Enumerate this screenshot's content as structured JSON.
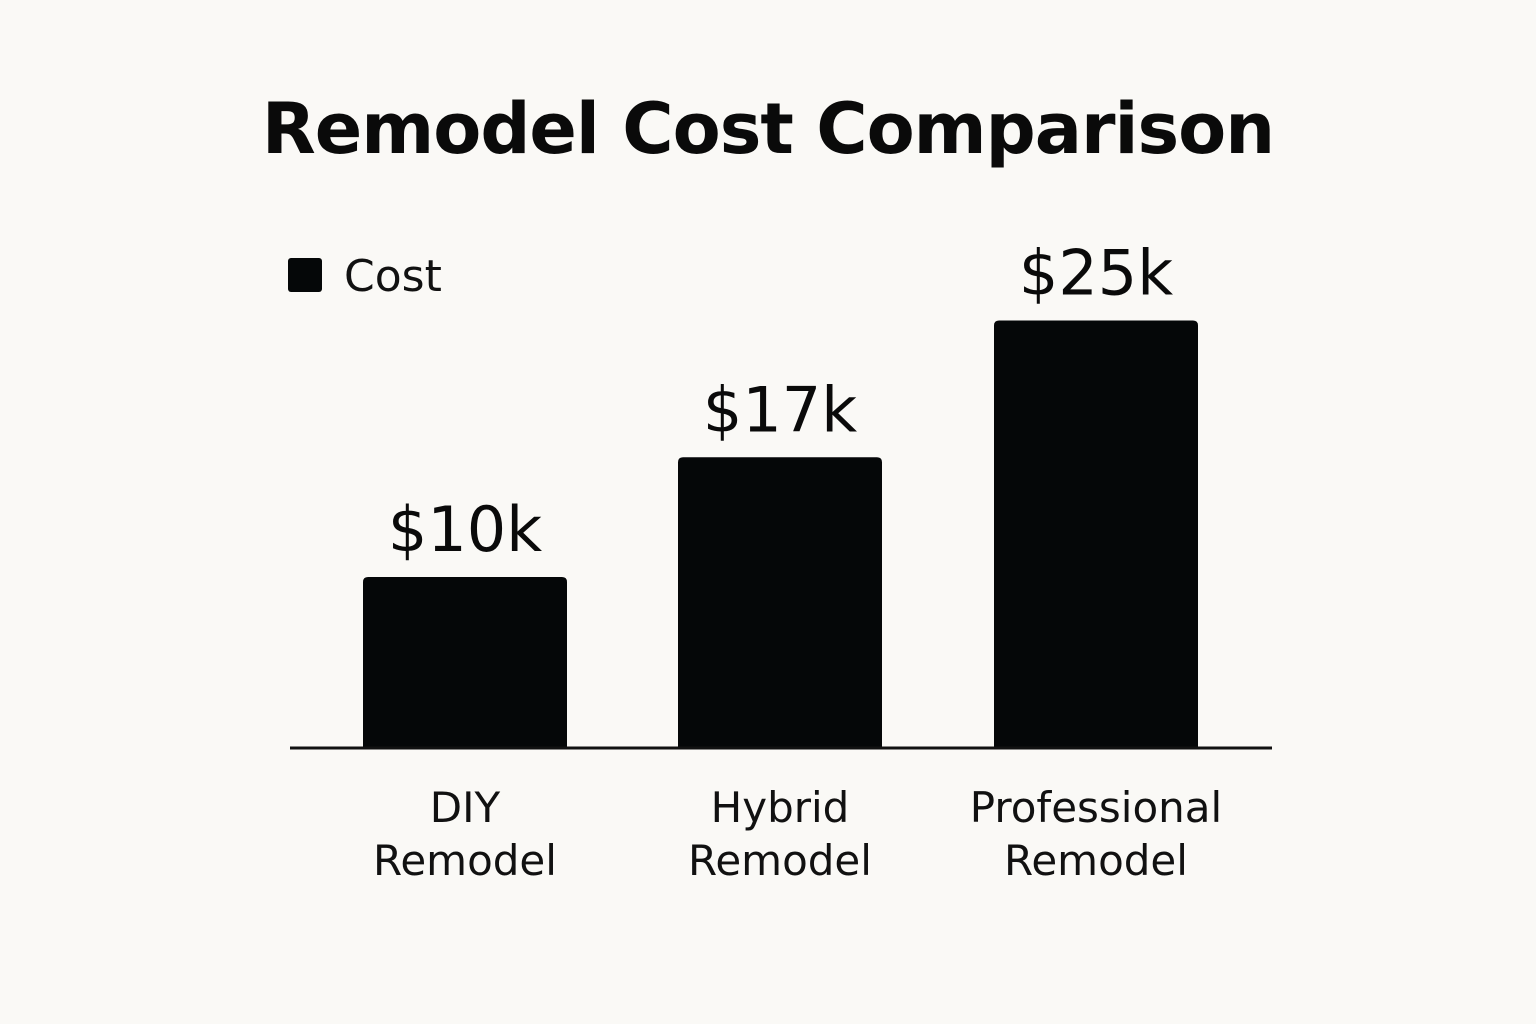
{
  "chart_data": {
    "type": "bar",
    "title": "Remodel Cost Comparison",
    "categories": [
      [
        "DIY",
        "Remodel"
      ],
      [
        "Hybrid",
        "Remodel"
      ],
      [
        "Professional",
        "Remodel"
      ]
    ],
    "series": [
      {
        "name": "Cost",
        "values": [
          10,
          17,
          25
        ],
        "data_labels": [
          "$10k",
          "$17k",
          "$25k"
        ],
        "color": "#050708"
      }
    ],
    "xlabel": "",
    "ylabel": "",
    "legend": {
      "entries": [
        "Cost"
      ],
      "placement": "top-left"
    },
    "grid": false,
    "y_axis_visible": false
  }
}
